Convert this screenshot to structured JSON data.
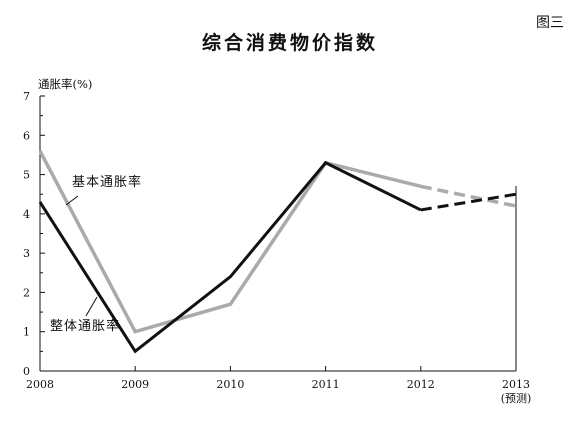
{
  "figure_label": "图三",
  "chart_data": {
    "type": "line",
    "title": "综合消费物价指数",
    "ylabel": "通胀率(%)",
    "xlabel": "",
    "x": [
      "2008",
      "2009",
      "2010",
      "2011",
      "2012",
      "2013"
    ],
    "x_sub_labels": [
      "",
      "",
      "",
      "",
      "",
      "(预测)"
    ],
    "ylim": [
      0,
      7
    ],
    "yticks": [
      0,
      1,
      2,
      3,
      4,
      5,
      6,
      7
    ],
    "grid": false,
    "forecast_from_index": 4,
    "series": [
      {
        "name": "整体通胀率",
        "color": "#111111",
        "values": [
          4.3,
          0.5,
          2.4,
          5.3,
          4.1,
          4.5
        ]
      },
      {
        "name": "基本通胀率",
        "color": "#aaaaaa",
        "values": [
          5.6,
          1.0,
          1.7,
          5.3,
          4.7,
          4.2
        ]
      }
    ]
  }
}
